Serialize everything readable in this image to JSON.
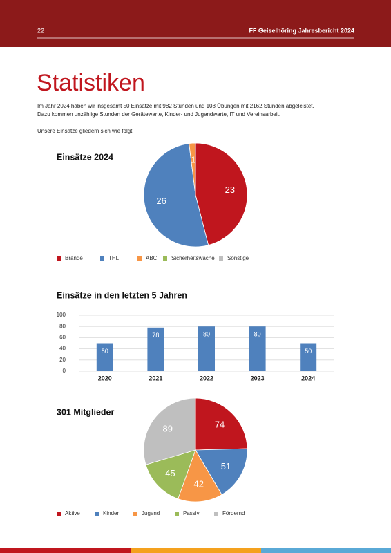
{
  "header": {
    "page": "22",
    "title": "FF Geiselhöring Jahresbericht 2024"
  },
  "title": "Statistiken",
  "intro": [
    "Im Jahr 2024 haben wir insgesamt 50 Einsätze mit 982 Stunden und 108 Übungen mit 2162 Stunden abgeleistet.",
    "Dazu kommen unzählige Stunden der Gerätewarte, Kinder- und Jugendwarte, IT und Vereinsarbeit."
  ],
  "note": "Unsere Einsätze gliedern sich wie folgt.",
  "chart_data": [
    {
      "type": "pie",
      "title": "Einsätze 2024",
      "categories": [
        "Brände",
        "THL",
        "ABC",
        "Sicherheitswache",
        "Sonstige"
      ],
      "values": [
        23,
        26,
        1,
        0,
        0
      ],
      "colors": [
        "#c0161e",
        "#4f81bd",
        "#f79646",
        "#9bbb59",
        "#bfbfbf"
      ]
    },
    {
      "type": "bar",
      "title": "Einsätze in den letzten 5 Jahren",
      "categories": [
        "2020",
        "2021",
        "2022",
        "2023",
        "2024"
      ],
      "values": [
        50,
        78,
        80,
        80,
        50
      ],
      "color": "#4f81bd",
      "ylim": [
        0,
        100
      ],
      "yticks": [
        0,
        20,
        40,
        60,
        80,
        100
      ],
      "grid": true
    },
    {
      "type": "pie",
      "title": "301 Mitglieder",
      "categories": [
        "Aktive",
        "Kinder",
        "Jugend",
        "Passiv",
        "Fördernd"
      ],
      "values": [
        74,
        51,
        42,
        45,
        89
      ],
      "colors": [
        "#c0161e",
        "#4f81bd",
        "#f79646",
        "#9bbb59",
        "#bfbfbf"
      ]
    }
  ]
}
